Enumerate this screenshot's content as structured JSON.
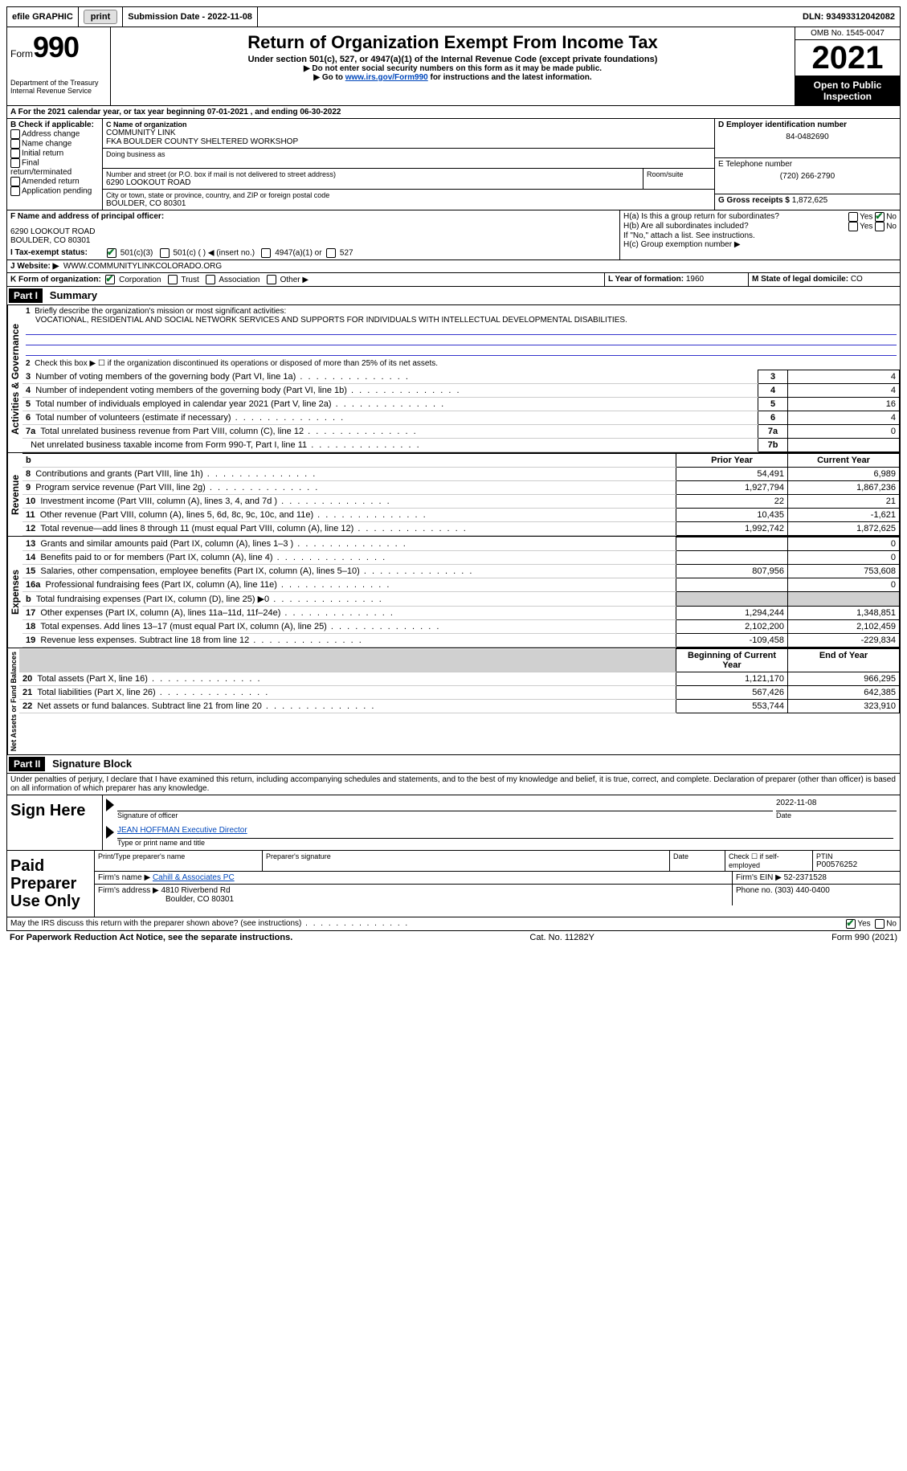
{
  "topbar": {
    "efile": "efile GRAPHIC",
    "print": "print",
    "submission": "Submission Date - 2022-11-08",
    "dln": "DLN: 93493312042082"
  },
  "header": {
    "form_label": "Form",
    "form_num": "990",
    "dept": "Department of the Treasury Internal Revenue Service",
    "title": "Return of Organization Exempt From Income Tax",
    "subtitle": "Under section 501(c), 527, or 4947(a)(1) of the Internal Revenue Code (except private foundations)",
    "note1": "▶ Do not enter social security numbers on this form as it may be made public.",
    "note2_pre": "▶ Go to ",
    "note2_link": "www.irs.gov/Form990",
    "note2_post": " for instructions and the latest information.",
    "omb": "OMB No. 1545-0047",
    "year": "2021",
    "inspect": "Open to Public Inspection"
  },
  "lineA": {
    "text_pre": "A For the 2021 calendar year, or tax year beginning ",
    "begin": "07-01-2021",
    "mid": " , and ending ",
    "end": "06-30-2022"
  },
  "sectionB": {
    "label": "B Check if applicable:",
    "items": [
      "Address change",
      "Name change",
      "Initial return",
      "Final return/terminated",
      "Amended return",
      "Application pending"
    ]
  },
  "sectionC": {
    "label": "C Name of organization",
    "name1": "COMMUNITY LINK",
    "name2": "FKA BOULDER COUNTY SHELTERED WORKSHOP",
    "dba": "Doing business as",
    "addr_label": "Number and street (or P.O. box if mail is not delivered to street address)",
    "room": "Room/suite",
    "addr": "6290 LOOKOUT ROAD",
    "city_label": "City or town, state or province, country, and ZIP or foreign postal code",
    "city": "BOULDER, CO  80301"
  },
  "sectionD": {
    "label": "D Employer identification number",
    "val": "84-0482690"
  },
  "sectionE": {
    "label": "E Telephone number",
    "val": "(720) 266-2790"
  },
  "sectionG": {
    "label": "G Gross receipts $",
    "val": "1,872,625"
  },
  "sectionF": {
    "label": "F Name and address of principal officer:",
    "addr1": "6290 LOOKOUT ROAD",
    "addr2": "BOULDER, CO  80301"
  },
  "sectionH": {
    "a": "H(a)  Is this a group return for subordinates?",
    "b": "H(b)  Are all subordinates included?",
    "note": "If \"No,\" attach a list. See instructions.",
    "c": "H(c)  Group exemption number ▶"
  },
  "lineI": {
    "label": "I   Tax-exempt status:",
    "opts": [
      "501(c)(3)",
      "501(c) (  ) ◀ (insert no.)",
      "4947(a)(1) or",
      "527"
    ]
  },
  "lineJ": {
    "label": "J   Website: ▶",
    "val": "WWW.COMMUNITYLINKCOLORADO.ORG"
  },
  "lineK": {
    "label": "K Form of organization:",
    "opts": [
      "Corporation",
      "Trust",
      "Association",
      "Other ▶"
    ]
  },
  "lineL": {
    "label": "L Year of formation:",
    "val": "1960"
  },
  "lineM": {
    "label": "M State of legal domicile:",
    "val": "CO"
  },
  "part1": {
    "num": "Part I",
    "title": "Summary"
  },
  "summary": {
    "q1": "Briefly describe the organization's mission or most significant activities:",
    "q1val": "VOCATIONAL, RESIDENTIAL AND SOCIAL NETWORK SERVICES AND SUPPORTS FOR INDIVIDUALS WITH INTELLECTUAL DEVELOPMENTAL DISABILITIES.",
    "q2": "Check this box ▶ ☐ if the organization discontinued its operations or disposed of more than 25% of its net assets.",
    "rows_top": [
      {
        "n": "3",
        "t": "Number of voting members of the governing body (Part VI, line 1a)",
        "box": "3",
        "v": "4"
      },
      {
        "n": "4",
        "t": "Number of independent voting members of the governing body (Part VI, line 1b)",
        "box": "4",
        "v": "4"
      },
      {
        "n": "5",
        "t": "Total number of individuals employed in calendar year 2021 (Part V, line 2a)",
        "box": "5",
        "v": "16"
      },
      {
        "n": "6",
        "t": "Total number of volunteers (estimate if necessary)",
        "box": "6",
        "v": "4"
      },
      {
        "n": "7a",
        "t": "Total unrelated business revenue from Part VIII, column (C), line 12",
        "box": "7a",
        "v": "0"
      },
      {
        "n": "",
        "t": "Net unrelated business taxable income from Form 990-T, Part I, line 11",
        "box": "7b",
        "v": ""
      }
    ],
    "col_prior": "Prior Year",
    "col_current": "Current Year",
    "rev": [
      {
        "n": "8",
        "t": "Contributions and grants (Part VIII, line 1h)",
        "p": "54,491",
        "c": "6,989"
      },
      {
        "n": "9",
        "t": "Program service revenue (Part VIII, line 2g)",
        "p": "1,927,794",
        "c": "1,867,236"
      },
      {
        "n": "10",
        "t": "Investment income (Part VIII, column (A), lines 3, 4, and 7d )",
        "p": "22",
        "c": "21"
      },
      {
        "n": "11",
        "t": "Other revenue (Part VIII, column (A), lines 5, 6d, 8c, 9c, 10c, and 11e)",
        "p": "10,435",
        "c": "-1,621"
      },
      {
        "n": "12",
        "t": "Total revenue—add lines 8 through 11 (must equal Part VIII, column (A), line 12)",
        "p": "1,992,742",
        "c": "1,872,625"
      }
    ],
    "exp": [
      {
        "n": "13",
        "t": "Grants and similar amounts paid (Part IX, column (A), lines 1–3 )",
        "p": "",
        "c": "0"
      },
      {
        "n": "14",
        "t": "Benefits paid to or for members (Part IX, column (A), line 4)",
        "p": "",
        "c": "0"
      },
      {
        "n": "15",
        "t": "Salaries, other compensation, employee benefits (Part IX, column (A), lines 5–10)",
        "p": "807,956",
        "c": "753,608"
      },
      {
        "n": "16a",
        "t": "Professional fundraising fees (Part IX, column (A), line 11e)",
        "p": "",
        "c": "0"
      },
      {
        "n": "b",
        "t": "Total fundraising expenses (Part IX, column (D), line 25) ▶0",
        "p": "SHADE",
        "c": "SHADE"
      },
      {
        "n": "17",
        "t": "Other expenses (Part IX, column (A), lines 11a–11d, 11f–24e)",
        "p": "1,294,244",
        "c": "1,348,851"
      },
      {
        "n": "18",
        "t": "Total expenses. Add lines 13–17 (must equal Part IX, column (A), line 25)",
        "p": "2,102,200",
        "c": "2,102,459"
      },
      {
        "n": "19",
        "t": "Revenue less expenses. Subtract line 18 from line 12",
        "p": "-109,458",
        "c": "-229,834"
      }
    ],
    "col_begin": "Beginning of Current Year",
    "col_end": "End of Year",
    "net": [
      {
        "n": "20",
        "t": "Total assets (Part X, line 16)",
        "p": "1,121,170",
        "c": "966,295"
      },
      {
        "n": "21",
        "t": "Total liabilities (Part X, line 26)",
        "p": "567,426",
        "c": "642,385"
      },
      {
        "n": "22",
        "t": "Net assets or fund balances. Subtract line 21 from line 20",
        "p": "553,744",
        "c": "323,910"
      }
    ],
    "vlabels": {
      "gov": "Activities & Governance",
      "rev": "Revenue",
      "exp": "Expenses",
      "net": "Net Assets or Fund Balances"
    }
  },
  "part2": {
    "num": "Part II",
    "title": "Signature Block"
  },
  "sig": {
    "declaration": "Under penalties of perjury, I declare that I have examined this return, including accompanying schedules and statements, and to the best of my knowledge and belief, it is true, correct, and complete. Declaration of preparer (other than officer) is based on all information of which preparer has any knowledge.",
    "sign_here": "Sign Here",
    "sig_officer": "Signature of officer",
    "date": "Date",
    "date_val": "2022-11-08",
    "name": "JEAN HOFFMAN  Executive Director",
    "name_label": "Type or print name and title"
  },
  "preparer": {
    "title": "Paid Preparer Use Only",
    "print_name": "Print/Type preparer's name",
    "sig": "Preparer's signature",
    "date": "Date",
    "check": "Check ☐ if self-employed",
    "ptin_label": "PTIN",
    "ptin": "P00576252",
    "firm_name_label": "Firm's name   ▶",
    "firm_name": "Cahill & Associates PC",
    "firm_ein_label": "Firm's EIN ▶",
    "firm_ein": "52-2371528",
    "firm_addr_label": "Firm's address ▶",
    "firm_addr1": "4810 Riverbend Rd",
    "firm_addr2": "Boulder, CO  80301",
    "phone_label": "Phone no.",
    "phone": "(303) 440-0400"
  },
  "discuss": {
    "text": "May the IRS discuss this return with the preparer shown above? (see instructions)",
    "yes": "Yes",
    "no": "No"
  },
  "footer": {
    "left": "For Paperwork Reduction Act Notice, see the separate instructions.",
    "mid": "Cat. No. 11282Y",
    "right": "Form 990 (2021)"
  }
}
